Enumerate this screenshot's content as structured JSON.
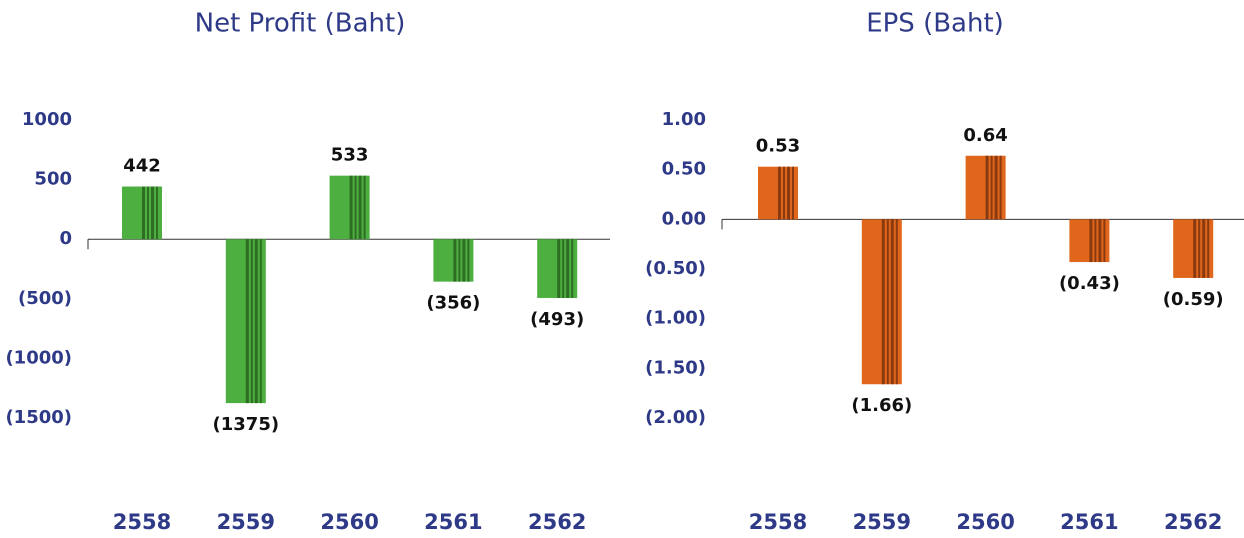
{
  "chart_data": [
    {
      "type": "bar",
      "title": "Net Profit (Baht)",
      "categories": [
        "2558",
        "2559",
        "2560",
        "2561",
        "2562"
      ],
      "values": [
        442,
        -1375,
        533,
        -356,
        -493
      ],
      "value_labels": [
        "442",
        "(1375)",
        "533",
        "(356)",
        "(493)"
      ],
      "color": "#4caf3f",
      "stripe_color": "#2d6e22",
      "ylim": [
        -1500,
        1000
      ],
      "yticks": [
        1000,
        500,
        0,
        {
          "value": -500,
          "label": "(500)"
        },
        {
          "value": -1000,
          "label": "(1000)"
        },
        {
          "value": -1500,
          "label": "(1500)"
        }
      ]
    },
    {
      "type": "bar",
      "title": "EPS (Baht)",
      "categories": [
        "2558",
        "2559",
        "2560",
        "2561",
        "2562"
      ],
      "values": [
        0.53,
        -1.66,
        0.64,
        -0.43,
        -0.59
      ],
      "value_labels": [
        "0.53",
        "(1.66)",
        "0.64",
        "(0.43)",
        "(0.59)"
      ],
      "color": "#e0661c",
      "stripe_color": "#8a3a0f",
      "ylim": [
        -2,
        1
      ],
      "yticks": [
        {
          "value": 1,
          "label": "1.00"
        },
        {
          "value": 0.5,
          "label": "0.50"
        },
        {
          "value": 0,
          "label": "0.00"
        },
        {
          "value": -0.5,
          "label": "(0.50)"
        },
        {
          "value": -1,
          "label": "(1.00)"
        },
        {
          "value": -1.5,
          "label": "(1.50)"
        },
        {
          "value": -2,
          "label": "(2.00)"
        }
      ]
    }
  ]
}
